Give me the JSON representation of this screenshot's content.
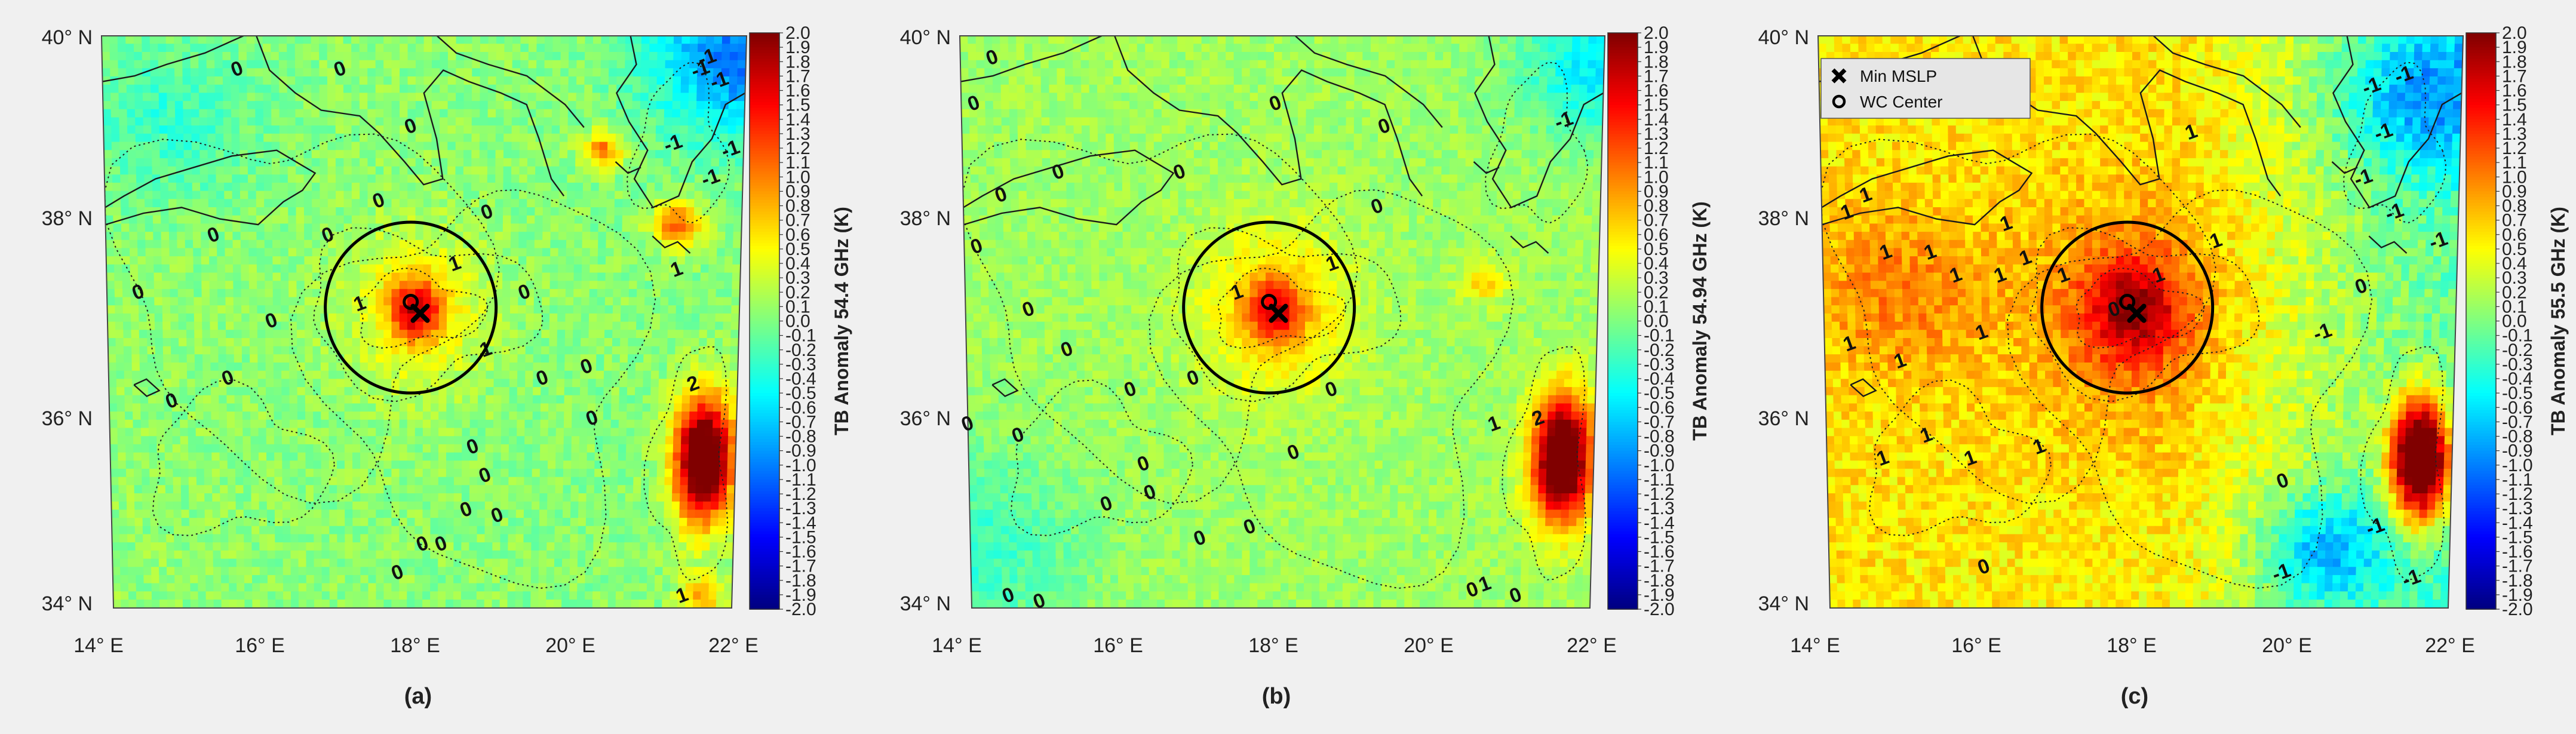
{
  "map": {
    "lat_labels": [
      "40° N",
      "38° N",
      "36° N",
      "34° N"
    ],
    "lon_labels": [
      "14° E",
      "16° E",
      "18° E",
      "20° E",
      "22° E"
    ],
    "colorbar_ticks": [
      "2.0",
      "1.9",
      "1.8",
      "1.7",
      "1.6",
      "1.5",
      "1.4",
      "1.3",
      "1.2",
      "1.1",
      "1.0",
      "0.9",
      "0.8",
      "0.7",
      "0.6",
      "0.5",
      "0.4",
      "0.3",
      "0.2",
      "0.1",
      "0.0",
      "-0.1",
      "-0.2",
      "-0.3",
      "-0.4",
      "-0.5",
      "-0.6",
      "-0.7",
      "-0.8",
      "-0.9",
      "-1.0",
      "-1.1",
      "-1.2",
      "-1.3",
      "-1.4",
      "-1.5",
      "-1.6",
      "-1.7",
      "-1.8",
      "-1.9",
      "-2.0"
    ],
    "colorbar_range": [
      -2.0,
      2.0
    ],
    "colormap": "jet",
    "legend": {
      "min_mslp_label": "Min MSLP",
      "wc_center_label": "WC Center"
    }
  },
  "panels": [
    {
      "caption": "(a)",
      "colorbar_title": "TB Anomaly 54.4 GHz (K)",
      "contour_labels": [
        "0",
        "0",
        "0",
        "0",
        "0",
        "0",
        "0",
        "0",
        "0",
        "0",
        "0",
        "0",
        "0",
        "0",
        "0",
        "0",
        "0",
        "0",
        "0",
        "0",
        "0",
        "0",
        "1",
        "1",
        "1",
        "1",
        "1",
        "-1",
        "-1",
        "-1",
        "-1",
        "-1",
        "-1",
        "2"
      ]
    },
    {
      "caption": "(b)",
      "colorbar_title": "TB Anomaly 54.94 GHz (K)",
      "contour_labels": [
        "0",
        "0",
        "0",
        "0",
        "0",
        "0",
        "0",
        "0",
        "0",
        "0",
        "0",
        "0",
        "0",
        "0",
        "0",
        "0",
        "0",
        "0",
        "0",
        "0",
        "0",
        "0",
        "1",
        "1",
        "0",
        "2",
        "1",
        "1",
        "0",
        "0",
        "0",
        "-1"
      ]
    },
    {
      "caption": "(c)",
      "colorbar_title": "TB Anomaly 55.5 GHz (K)",
      "contour_labels": [
        "1",
        "1",
        "1",
        "1",
        "1",
        "1",
        "1",
        "1",
        "1",
        "1",
        "1",
        "1",
        "1",
        "1",
        "1",
        "1",
        "0",
        "0",
        "0",
        "-1",
        "-1",
        "-1",
        "-1",
        "-1",
        "-1",
        "-1",
        "-1",
        "-1",
        "-1",
        "1",
        "1",
        "0",
        "0",
        "1"
      ]
    }
  ]
}
